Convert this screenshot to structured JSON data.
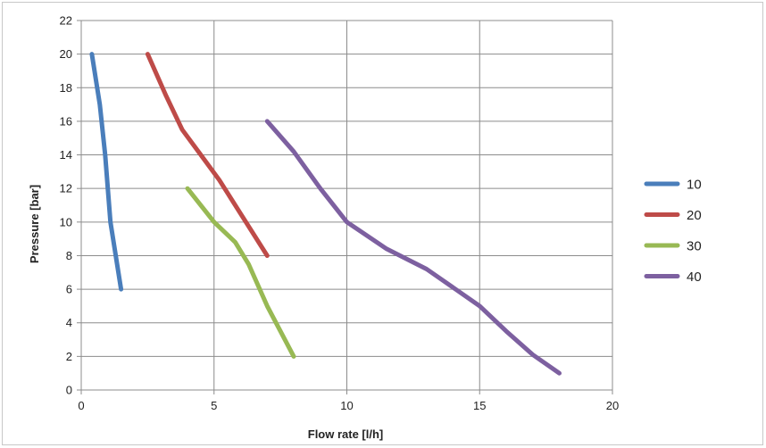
{
  "chart_data": {
    "type": "line",
    "title": "",
    "xlabel": "Flow rate [l/h]",
    "ylabel": "Pressure [bar]",
    "xlim": [
      0,
      20
    ],
    "ylim": [
      0,
      22
    ],
    "xticks": [
      0,
      5,
      10,
      15,
      20
    ],
    "yticks": [
      0,
      2,
      4,
      6,
      8,
      10,
      12,
      14,
      16,
      18,
      20,
      22
    ],
    "grid": true,
    "legend_position": "right",
    "series": [
      {
        "name": "10",
        "color": "#4a7ebb",
        "points": [
          [
            0.4,
            20
          ],
          [
            0.7,
            17
          ],
          [
            0.9,
            14
          ],
          [
            1.1,
            10
          ],
          [
            1.5,
            6
          ]
        ]
      },
      {
        "name": "20",
        "color": "#be4b48",
        "points": [
          [
            2.5,
            20
          ],
          [
            3.2,
            17.5
          ],
          [
            3.8,
            15.5
          ],
          [
            4.5,
            14
          ],
          [
            5.2,
            12.5
          ],
          [
            6,
            10.5
          ],
          [
            7,
            8
          ]
        ]
      },
      {
        "name": "30",
        "color": "#98b954",
        "points": [
          [
            4,
            12
          ],
          [
            5,
            10
          ],
          [
            5.8,
            8.8
          ],
          [
            6.3,
            7.5
          ],
          [
            7,
            5
          ],
          [
            8,
            2
          ]
        ]
      },
      {
        "name": "40",
        "color": "#7d60a0",
        "points": [
          [
            7,
            16
          ],
          [
            8,
            14.2
          ],
          [
            9,
            12
          ],
          [
            10,
            10
          ],
          [
            11.5,
            8.4
          ],
          [
            13,
            7.2
          ],
          [
            15,
            5
          ],
          [
            16,
            3.5
          ],
          [
            17,
            2.1
          ],
          [
            18,
            1
          ]
        ]
      }
    ]
  }
}
